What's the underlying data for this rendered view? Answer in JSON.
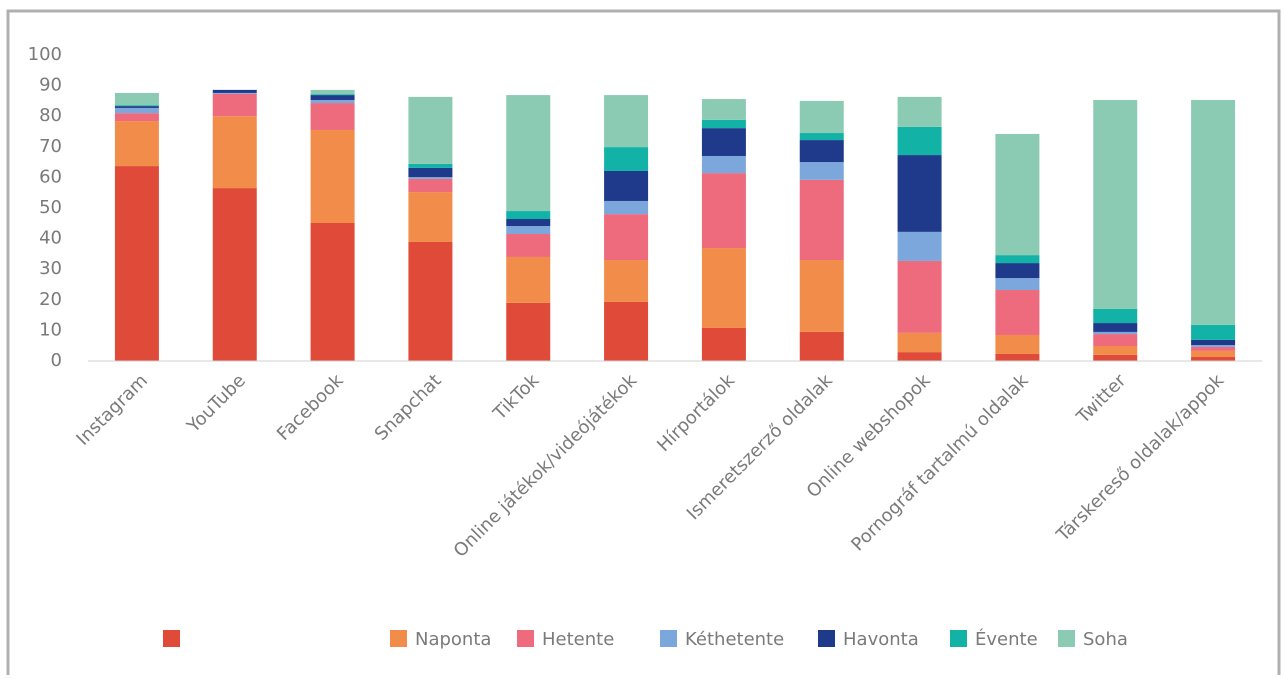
{
  "chart_data": {
    "type": "stacked_bar",
    "categories": [
      "Instagram",
      "YouTube",
      "Facebook",
      "Snapchat",
      "TikTok",
      "Online játékok/videójátékok",
      "Hírportálok",
      "Ismeretszerző oldalak",
      "Online webshopok",
      "Pornográf tartalmú oldalak",
      "Twitter",
      "Társkereső oldalak/appok"
    ],
    "series": [
      {
        "color": "#e04a38",
        "values": [
          63.7,
          56.5,
          45.1,
          38.9,
          19,
          19.3,
          10.8,
          9.5,
          2.9,
          2.3,
          2,
          1.3
        ]
      },
      {
        "name": "Naponta",
        "color": "#f28c4a",
        "values": [
          14.7,
          23.5,
          30.4,
          16.3,
          15,
          13.7,
          26.1,
          23.5,
          6.3,
          6.2,
          2.9,
          2
        ]
      },
      {
        "name": "Hetente",
        "color": "#ee6b7e",
        "values": [
          2.6,
          7.3,
          8.8,
          4.3,
          7.5,
          15,
          24.5,
          26.2,
          23.5,
          14.7,
          3.9,
          1.3
        ]
      },
      {
        "name": "Kéthetente",
        "color": "#7ba7dc",
        "values": [
          1.7,
          0.3,
          1,
          0.6,
          2.6,
          4.3,
          5.6,
          5.8,
          9.5,
          3.9,
          0.7,
          0.6
        ]
      },
      {
        "name": "Havonta",
        "color": "#1f3a8a",
        "values": [
          0.6,
          1,
          1.6,
          3,
          2.3,
          9.8,
          9.1,
          7.2,
          25.1,
          4.9,
          2.9,
          1.7
        ]
      },
      {
        "name": "Évente",
        "color": "#12b3a6",
        "values": [
          0.3,
          0,
          0.3,
          1.3,
          2.6,
          7.8,
          2.7,
          2.3,
          9.2,
          2.6,
          4.6,
          4.9
        ]
      },
      {
        "name": "Soha",
        "color": "#8ccbb3",
        "values": [
          4,
          0,
          1.4,
          21.9,
          37.9,
          17,
          6.8,
          10.5,
          9.8,
          39.6,
          68.3,
          73.5
        ]
      }
    ],
    "ylim": [
      0,
      100
    ],
    "yticks": [
      0,
      10,
      20,
      30,
      40,
      50,
      60,
      70,
      80,
      90,
      100
    ],
    "grid": false,
    "legend": "bottom"
  }
}
